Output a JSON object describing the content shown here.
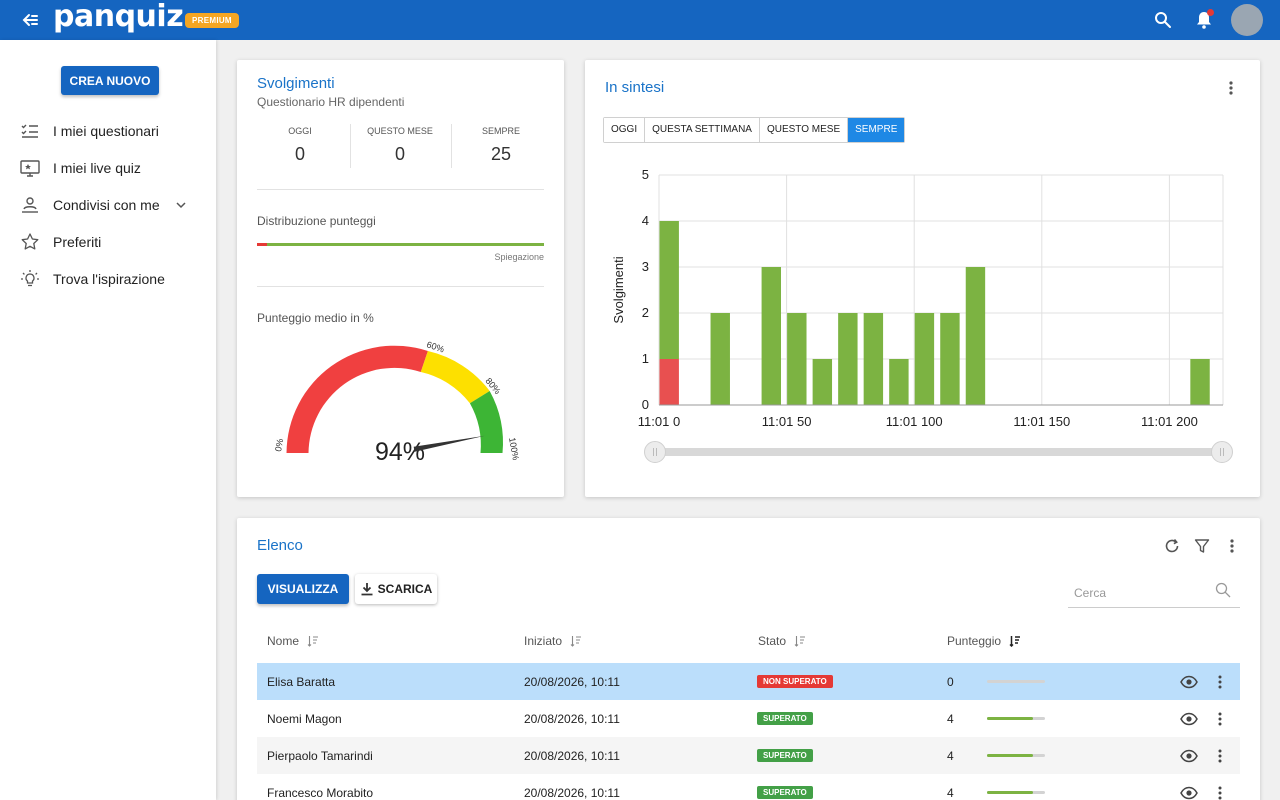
{
  "app": {
    "logo": "panquiz",
    "badge": "PREMIUM"
  },
  "sidebar": {
    "new_button": "CREA NUOVO",
    "items": [
      {
        "label": "I miei questionari",
        "icon": "checklist-icon"
      },
      {
        "label": "I miei live quiz",
        "icon": "monitor-star-icon"
      },
      {
        "label": "Condivisi con me",
        "icon": "shared-user-icon"
      },
      {
        "label": "Preferiti",
        "icon": "star-icon"
      },
      {
        "label": "Trova l'ispirazione",
        "icon": "lightbulb-icon"
      }
    ]
  },
  "summary": {
    "title": "Svolgimenti",
    "subtitle": "Questionario HR dipendenti",
    "stats": [
      {
        "label": "OGGI",
        "value": "0"
      },
      {
        "label": "QUESTO MESE",
        "value": "0"
      },
      {
        "label": "SEMPRE",
        "value": "25"
      }
    ],
    "distribution_label": "Distribuzione punteggi",
    "distribution_caption": "Spiegazione",
    "average_label": "Punteggio medio in %",
    "gauge": {
      "value_text": "94%",
      "value": 94,
      "labels": [
        "0%",
        "60%",
        "80%",
        "100%"
      ],
      "colors": {
        "red": "#f04040",
        "yellow": "#fde000",
        "green": "#3db535"
      }
    }
  },
  "overview": {
    "title": "In sintesi",
    "filters": [
      {
        "label": "OGGI",
        "active": false
      },
      {
        "label": "QUESTA SETTIMANA",
        "active": false
      },
      {
        "label": "QUESTO MESE",
        "active": false
      },
      {
        "label": "SEMPRE",
        "active": true
      }
    ]
  },
  "chart_data": {
    "type": "bar",
    "ylabel": "Svolgimenti",
    "ylim": [
      0,
      5
    ],
    "yticks": [
      0,
      1,
      2,
      3,
      4,
      5
    ],
    "xlim": [
      0,
      221
    ],
    "xticks": [
      {
        "value": 0,
        "label": "11:01 0"
      },
      {
        "value": 50,
        "label": "11:01 50"
      },
      {
        "value": 100,
        "label": "11:01 100"
      },
      {
        "value": 150,
        "label": "11:01 150"
      },
      {
        "value": 200,
        "label": "11:01 200"
      }
    ],
    "bar_width": 8,
    "grid": true,
    "series": [
      {
        "color": "#e85050",
        "x": [
          4
        ],
        "values": [
          1
        ]
      },
      {
        "color": "#7cb342",
        "x": [
          4,
          24,
          44,
          54,
          64,
          74,
          84,
          94,
          104,
          114,
          124,
          212
        ],
        "values": [
          3,
          2,
          3,
          2,
          1,
          2,
          2,
          1,
          2,
          2,
          3,
          1
        ]
      }
    ]
  },
  "list": {
    "title": "Elenco",
    "view_button": "VISUALIZZA",
    "download_button": "SCARICA",
    "search_placeholder": "Cerca",
    "columns": {
      "name": "Nome",
      "started": "Iniziato",
      "status": "Stato",
      "score": "Punteggio"
    },
    "rows": [
      {
        "name": "Elisa Baratta",
        "started": "20/08/2026, 10:11",
        "status": "NON SUPERATO",
        "passed": false,
        "score": "0",
        "fraction": 0
      },
      {
        "name": "Noemi Magon",
        "started": "20/08/2026, 10:11",
        "status": "SUPERATO",
        "passed": true,
        "score": "4",
        "fraction": 0.8
      },
      {
        "name": "Pierpaolo Tamarindi",
        "started": "20/08/2026, 10:11",
        "status": "SUPERATO",
        "passed": true,
        "score": "4",
        "fraction": 0.8
      },
      {
        "name": "Francesco Morabito",
        "started": "20/08/2026, 10:11",
        "status": "SUPERATO",
        "passed": true,
        "score": "4",
        "fraction": 0.8
      }
    ]
  }
}
